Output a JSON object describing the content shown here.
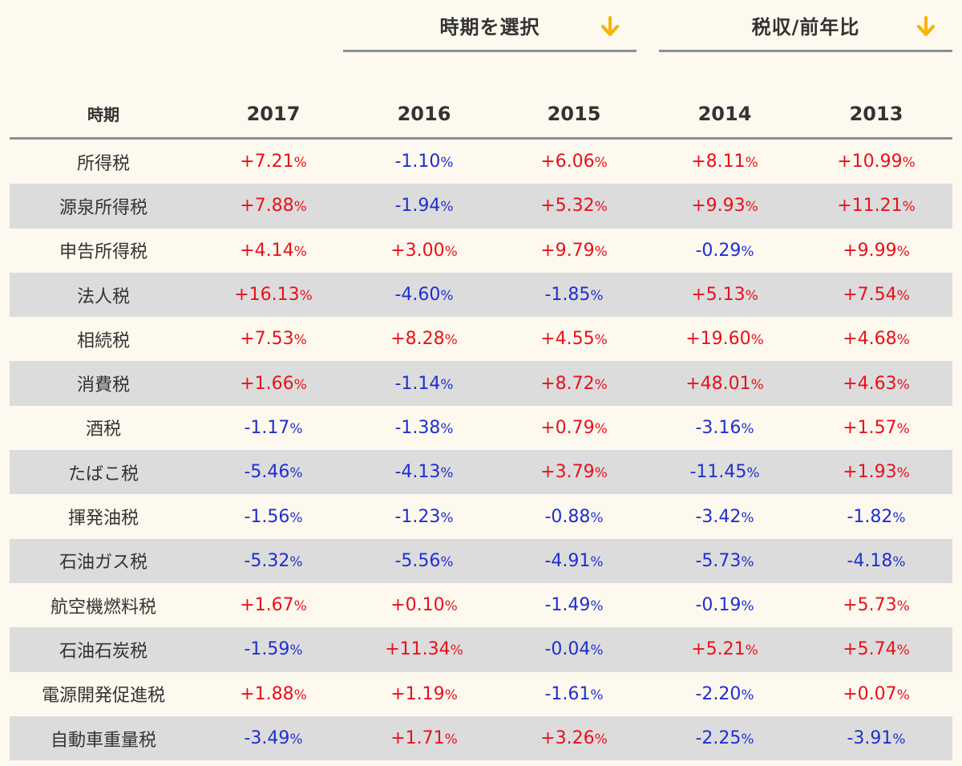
{
  "selectors": {
    "period": {
      "label": "時期を選択",
      "icon": "arrow-down-icon"
    },
    "metric": {
      "label": "税収/前年比",
      "icon": "arrow-down-icon"
    }
  },
  "colors": {
    "background": "#fdf9ef",
    "positive": "#e8111b",
    "negative": "#1f2fcf",
    "arrow": "#f5b400",
    "row_alt": "#dcdcdc",
    "rule": "#8a8f99"
  },
  "table": {
    "headers": [
      "時期",
      "2017",
      "2016",
      "2015",
      "2014",
      "2013"
    ],
    "rows": [
      {
        "name": "所得税",
        "values": [
          "+7.21",
          "-1.10",
          "+6.06",
          "+8.11",
          "+10.99"
        ]
      },
      {
        "name": "源泉所得税",
        "values": [
          "+7.88",
          "-1.94",
          "+5.32",
          "+9.93",
          "+11.21"
        ]
      },
      {
        "name": "申告所得税",
        "values": [
          "+4.14",
          "+3.00",
          "+9.79",
          "-0.29",
          "+9.99"
        ]
      },
      {
        "name": "法人税",
        "values": [
          "+16.13",
          "-4.60",
          "-1.85",
          "+5.13",
          "+7.54"
        ]
      },
      {
        "name": "相続税",
        "values": [
          "+7.53",
          "+8.28",
          "+4.55",
          "+19.60",
          "+4.68"
        ]
      },
      {
        "name": "消費税",
        "values": [
          "+1.66",
          "-1.14",
          "+8.72",
          "+48.01",
          "+4.63"
        ]
      },
      {
        "name": "酒税",
        "values": [
          "-1.17",
          "-1.38",
          "+0.79",
          "-3.16",
          "+1.57"
        ]
      },
      {
        "name": "たばこ税",
        "values": [
          "-5.46",
          "-4.13",
          "+3.79",
          "-11.45",
          "+1.93"
        ]
      },
      {
        "name": "揮発油税",
        "values": [
          "-1.56",
          "-1.23",
          "-0.88",
          "-3.42",
          "-1.82"
        ]
      },
      {
        "name": "石油ガス税",
        "values": [
          "-5.32",
          "-5.56",
          "-4.91",
          "-5.73",
          "-4.18"
        ]
      },
      {
        "name": "航空機燃料税",
        "values": [
          "+1.67",
          "+0.10",
          "-1.49",
          "-0.19",
          "+5.73"
        ]
      },
      {
        "name": "石油石炭税",
        "values": [
          "-1.59",
          "+11.34",
          "-0.04",
          "+5.21",
          "+5.74"
        ]
      },
      {
        "name": "電源開発促進税",
        "values": [
          "+1.88",
          "+1.19",
          "-1.61",
          "-2.20",
          "+0.07"
        ]
      },
      {
        "name": "自動車重量税",
        "values": [
          "-3.49",
          "+1.71",
          "+3.26",
          "-2.25",
          "-3.91"
        ]
      }
    ],
    "unit": "%"
  }
}
